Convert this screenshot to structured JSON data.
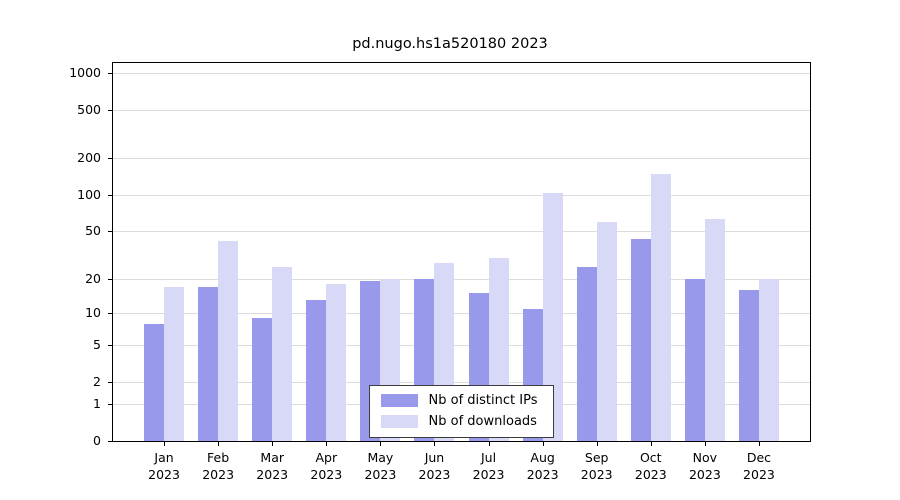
{
  "chart_data": {
    "type": "bar",
    "title": "pd.nugo.hs1a520180 2023",
    "categories": [
      "Jan",
      "Feb",
      "Mar",
      "Apr",
      "May",
      "Jun",
      "Jul",
      "Aug",
      "Sep",
      "Oct",
      "Nov",
      "Dec"
    ],
    "year_label": "2023",
    "series": [
      {
        "name": "Nb of distinct IPs",
        "color": "#9999ec",
        "values": [
          8,
          17,
          9,
          13,
          19,
          20,
          15,
          11,
          25,
          43,
          20,
          16
        ]
      },
      {
        "name": "Nb of downloads",
        "color": "#d8d9f6",
        "values": [
          17,
          42,
          25,
          18,
          20,
          27,
          30,
          103,
          60,
          150,
          63,
          20
        ]
      }
    ],
    "yticks": [
      0,
      1,
      2,
      5,
      10,
      20,
      50,
      100,
      200,
      500,
      1000
    ],
    "ylim": [
      0,
      1200
    ],
    "scale": "log10(value+1)",
    "grid": "horizontal",
    "legend_position": "bottom-center-inside",
    "xlabel": "",
    "ylabel": ""
  },
  "colors": {
    "grid": "#dcdcdc",
    "axis": "#000000",
    "background": "#ffffff",
    "text": "#000000"
  }
}
